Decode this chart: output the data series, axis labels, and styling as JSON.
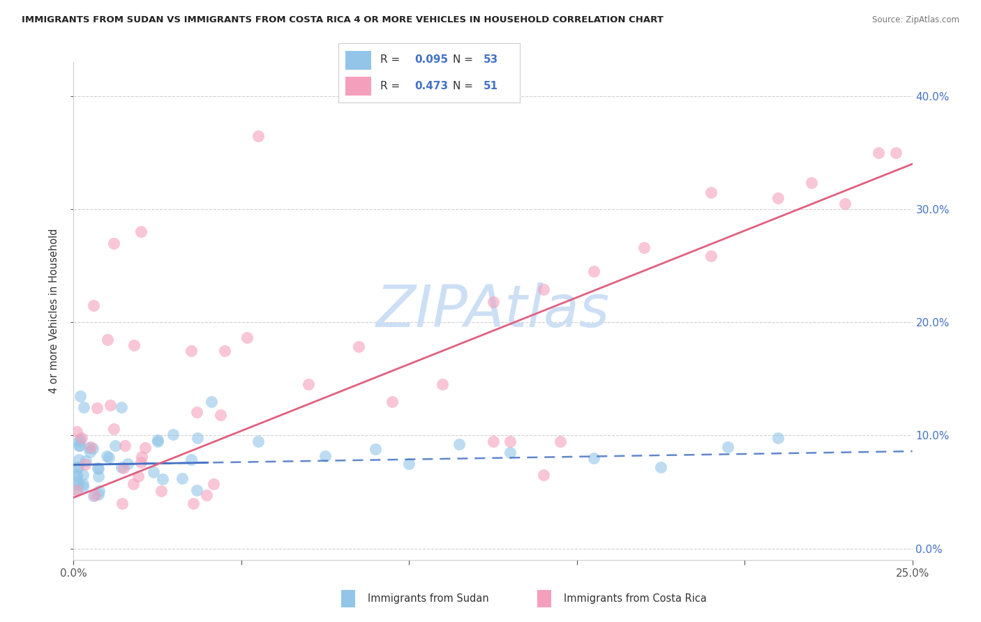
{
  "title": "IMMIGRANTS FROM SUDAN VS IMMIGRANTS FROM COSTA RICA 4 OR MORE VEHICLES IN HOUSEHOLD CORRELATION CHART",
  "source": "Source: ZipAtlas.com",
  "ylabel": "4 or more Vehicles in Household",
  "xlim": [
    0.0,
    0.25
  ],
  "ylim": [
    -0.01,
    0.43
  ],
  "yticks": [
    0.0,
    0.1,
    0.2,
    0.3,
    0.4
  ],
  "xticks": [
    0.0,
    0.05,
    0.1,
    0.15,
    0.2,
    0.25
  ],
  "legend_r_sudan": "0.095",
  "legend_n_sudan": "53",
  "legend_r_cr": "0.473",
  "legend_n_cr": "51",
  "legend_label_sudan": "Immigrants from Sudan",
  "legend_label_cr": "Immigrants from Costa Rica",
  "sudan_color": "#92c5e8",
  "costarica_color": "#f4a0bc",
  "sudan_line_color": "#4472c4",
  "costarica_line_color": "#e06080",
  "legend_text_color": "#4472c4",
  "watermark": "ZIPAtlas",
  "watermark_color": "#cddff5",
  "background_color": "#ffffff",
  "grid_color": "#d0d0d0",
  "sudan_intercept": 0.074,
  "sudan_slope": 0.048,
  "cr_intercept": 0.045,
  "cr_slope": 1.18
}
